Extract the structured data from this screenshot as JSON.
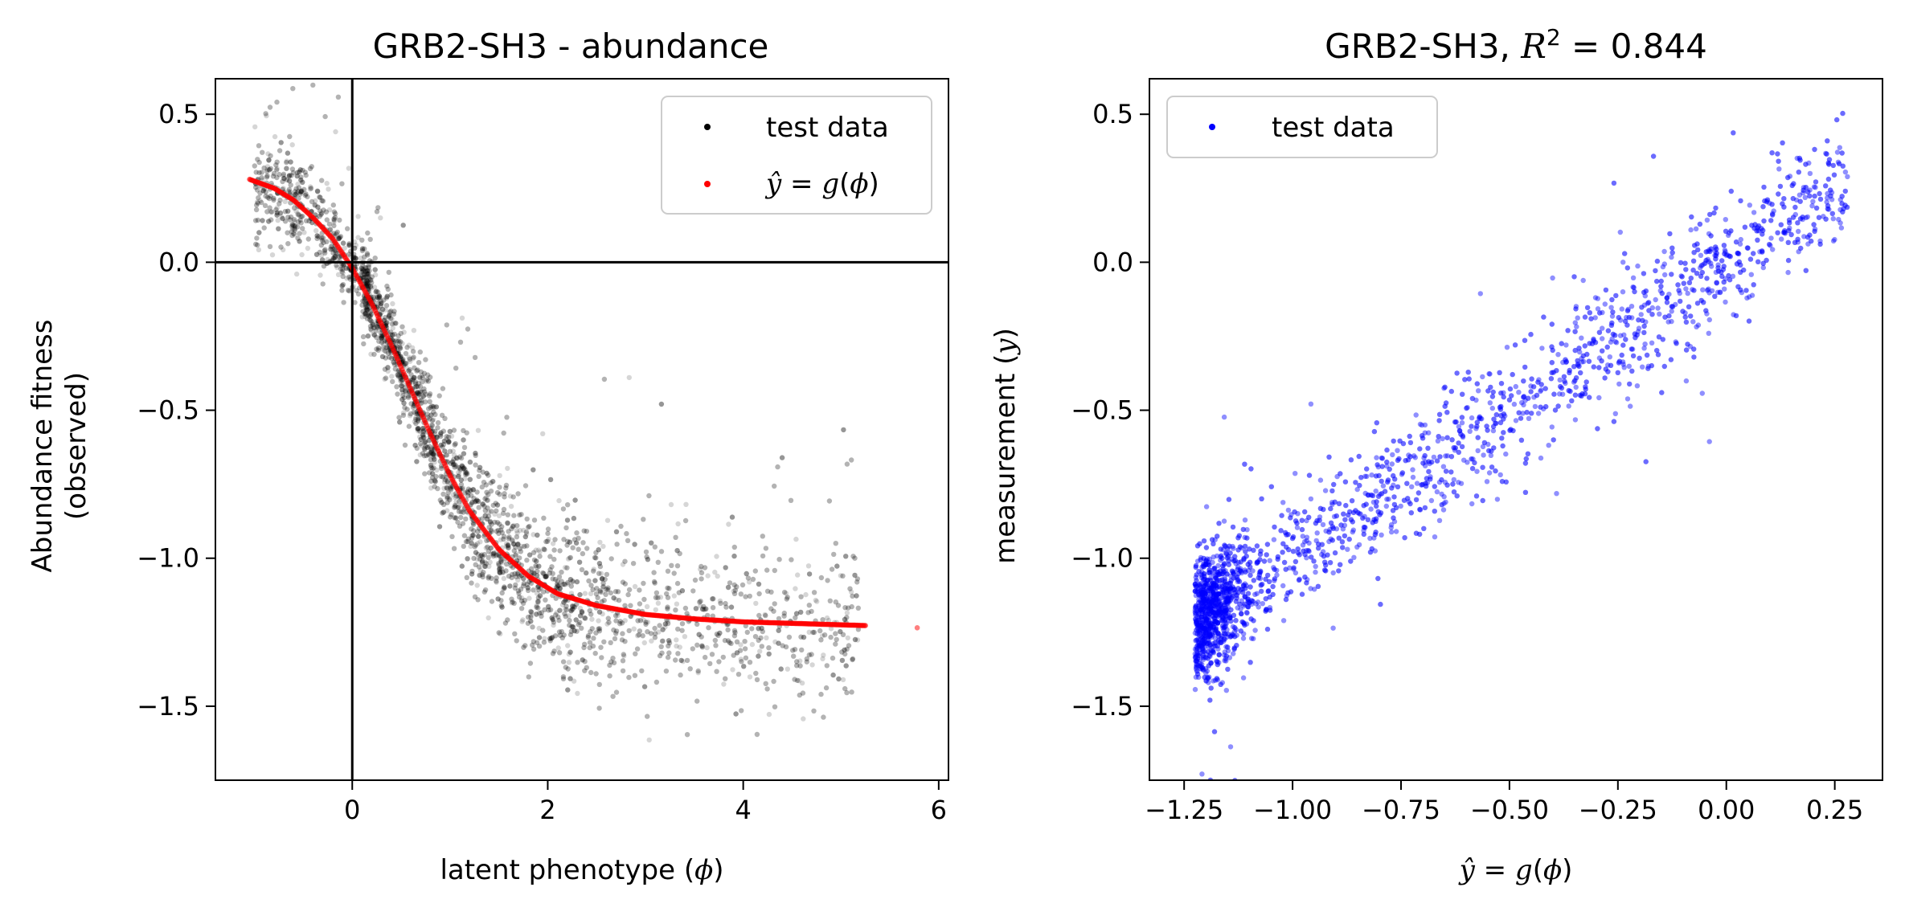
{
  "chart_data": [
    {
      "type": "scatter",
      "title": "GRB2-SH3 - abundance",
      "xlabel": "latent phenotype (ϕ)",
      "ylabel_line1": "Abundance fitness",
      "ylabel_line2": "(observed)",
      "xlim": [
        -1.4,
        6.1
      ],
      "ylim": [
        -1.75,
        0.62
      ],
      "xticks": [
        0,
        2,
        4,
        6
      ],
      "xtick_labels": [
        "0",
        "2",
        "4",
        "6"
      ],
      "yticks": [
        0.5,
        0.0,
        -0.5,
        -1.0,
        -1.5
      ],
      "ytick_labels": [
        "0.5",
        "0.0",
        "−0.5",
        "−1.0",
        "−1.5"
      ],
      "reference_lines": {
        "x": 0,
        "y": 0
      },
      "legend_position": "top-right",
      "series": [
        {
          "name": "test data",
          "color": "#000000",
          "points_description": "dense cloud following decreasing sigmoid from (-1.0, 0.27) to (5.2, -1.23)",
          "approx_points_count": 5000
        },
        {
          "name": "ŷ = g(ϕ)",
          "color": "#ff0000",
          "x": [
            -1.05,
            -0.8,
            -0.6,
            -0.4,
            -0.2,
            0.0,
            0.2,
            0.4,
            0.6,
            0.8,
            1.0,
            1.2,
            1.5,
            1.8,
            2.1,
            2.5,
            3.0,
            3.5,
            4.0,
            4.5,
            5.0,
            5.3,
            5.78
          ],
          "y": [
            0.28,
            0.25,
            0.21,
            0.15,
            0.08,
            -0.02,
            -0.14,
            -0.28,
            -0.43,
            -0.58,
            -0.72,
            -0.84,
            -0.97,
            -1.06,
            -1.12,
            -1.16,
            -1.19,
            -1.205,
            -1.215,
            -1.22,
            -1.225,
            -1.228,
            -1.235
          ]
        }
      ]
    },
    {
      "type": "scatter",
      "title": "GRB2-SH3, R² = 0.844",
      "title_prefix": "GRB2-SH3, ",
      "title_r": "R",
      "title_sup": "2",
      "title_suffix": " =  0.844",
      "xlabel": "ŷ = g(ϕ)",
      "ylabel": "measurement (y)",
      "xlim": [
        -1.33,
        0.36
      ],
      "ylim": [
        -1.75,
        0.62
      ],
      "xticks": [
        -1.25,
        -1.0,
        -0.75,
        -0.5,
        -0.25,
        0.0,
        0.25
      ],
      "xtick_labels": [
        "−1.25",
        "−1.00",
        "−0.75",
        "−0.50",
        "−0.25",
        "0.00",
        "0.25"
      ],
      "yticks": [
        0.5,
        0.0,
        -0.5,
        -1.0,
        -1.5
      ],
      "ytick_labels": [
        "0.5",
        "0.0",
        "−0.5",
        "−1.0",
        "−1.5"
      ],
      "legend_position": "top-left",
      "series": [
        {
          "name": "test data",
          "color": "#0000ff",
          "points_description": "dense cloud along diagonal from (-1.22, -1.2) to (0.28, 0.3)",
          "approx_points_count": 5000
        }
      ]
    }
  ]
}
